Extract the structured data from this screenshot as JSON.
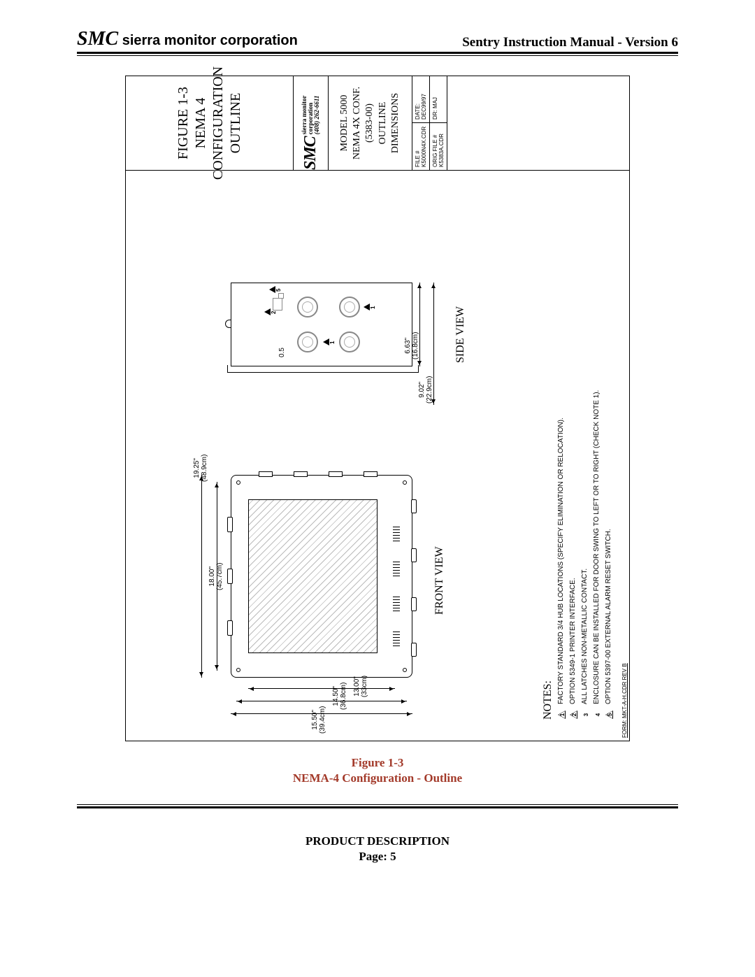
{
  "header": {
    "brand_italic": "SMC",
    "brand_rest": " sierra monitor corporation",
    "right": "Sentry Instruction Manual - Version 6"
  },
  "titleblock": {
    "fig_line1": "FIGURE 1-3",
    "fig_line2": "NEMA 4",
    "fig_line3": "CONFIGURATION",
    "fig_line4": "OUTLINE",
    "logo_italic": "SMC",
    "logo_text1": "sierra monitor corporation",
    "logo_text2": "(408) 262-6611",
    "model_line1": "MODEL 5000",
    "model_line2": "NEMA 4X CONF. (5383-00)",
    "model_line3": "OUTLINE DIMENSIONS",
    "file1": "FILE # K5000N4X.CDR",
    "file2": "ORIG FILE # K5383A.CDR",
    "date": "DATE:  DEC99/97",
    "by": "DR:  MAJ"
  },
  "dims": {
    "w1": "15.50\"",
    "w1m": "(39.4cm)",
    "w2": "14.50\"",
    "w2m": "(36.8cm)",
    "w3": "13.00\"",
    "w3m": "(33cm)",
    "h1": "19.25\"",
    "h1m": "(48.9cm)",
    "h2": "18.00\"",
    "h2m": "(45.7cm)",
    "d1": "9.02\"",
    "d1m": "(22.9cm)",
    "d2": "6.63\"",
    "d2m": "(16.8cm)",
    "dot5": "0.5"
  },
  "views": {
    "front": "FRONT VIEW",
    "side": "SIDE VIEW"
  },
  "notes": {
    "title": "NOTES:",
    "items": [
      {
        "n": "1",
        "tri": true,
        "text": "FACTORY STANDARD 3/4 HUB LOCATIONS (SPECIFY ELIMINATION OR RELOCATION)."
      },
      {
        "n": "2",
        "tri": true,
        "text": "OPTION 5349-1 PRINTER INTERFACE."
      },
      {
        "n": "3",
        "tri": false,
        "text": "ALL LATCHES NON-METALLIC CONTACT."
      },
      {
        "n": "4",
        "tri": false,
        "text": "ENCLOSURE CAN BE INSTALLED FOR DOOR SWING TO LEFT OR TO RIGHT (CHECK NOTE 1)."
      },
      {
        "n": "5",
        "tri": true,
        "text": "OPTION 5397-00 EXTERNAL ALARM RESET SWITCH."
      }
    ],
    "form_ref": "FORM: MKT-A-H.CDR    REV B"
  },
  "caption": {
    "line1": "Figure 1-3",
    "line2": "NEMA-4 Configuration - Outline"
  },
  "footer": {
    "line1": "PRODUCT DESCRIPTION",
    "line2": "Page:  5"
  },
  "colors": {
    "caption": "#a33a2a"
  }
}
